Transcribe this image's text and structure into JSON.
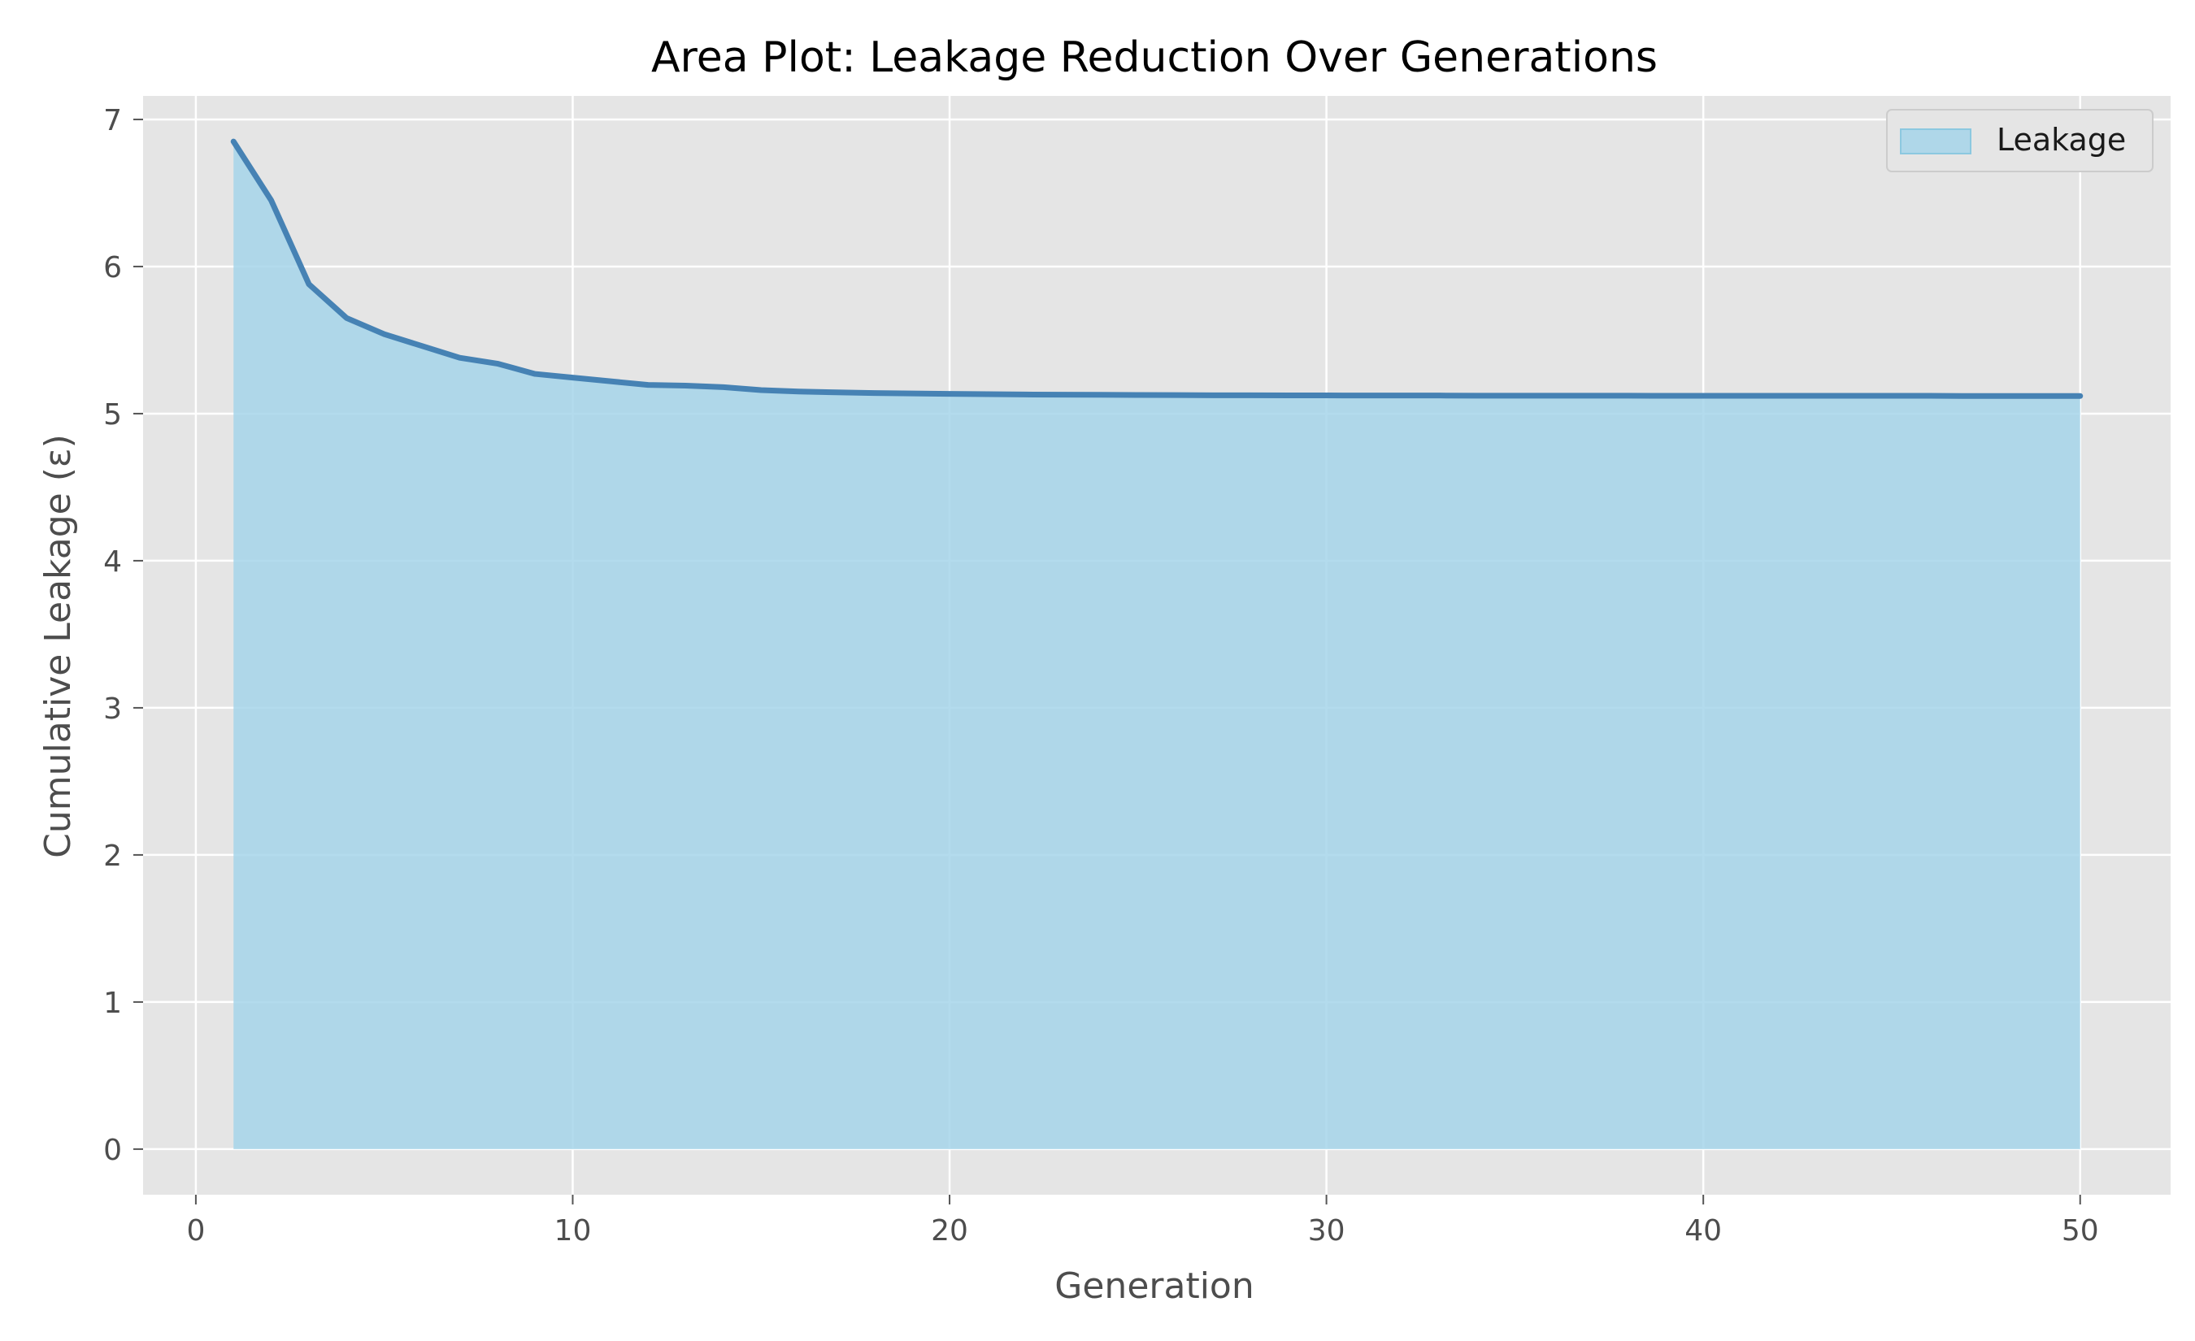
{
  "chart_data": {
    "type": "area",
    "title": "Area Plot: Leakage Reduction Over Generations",
    "xlabel": "Generation",
    "ylabel": "Cumulative Leakage (ε)",
    "xlim": [
      -1.4,
      52.4
    ],
    "ylim": [
      -0.31,
      7.16
    ],
    "xticks": [
      0,
      10,
      20,
      30,
      40,
      50
    ],
    "yticks": [
      0,
      1,
      2,
      3,
      4,
      5,
      6,
      7
    ],
    "grid": true,
    "legend_position": "top-right",
    "colors": {
      "fill": "#a6d5ea",
      "line": "#4682b4",
      "plot_bg": "#e5e5e5",
      "grid": "#ffffff"
    },
    "series": [
      {
        "name": "Leakage",
        "x": [
          1,
          2,
          3,
          4,
          5,
          6,
          7,
          8,
          9,
          10,
          11,
          12,
          13,
          14,
          15,
          16,
          17,
          18,
          19,
          20,
          21,
          22,
          23,
          24,
          25,
          26,
          27,
          28,
          29,
          30,
          31,
          32,
          33,
          34,
          35,
          36,
          37,
          38,
          39,
          40,
          41,
          42,
          43,
          44,
          45,
          46,
          47,
          48,
          49,
          50
        ],
        "values": [
          6.85,
          6.45,
          5.88,
          5.65,
          5.54,
          5.46,
          5.38,
          5.34,
          5.27,
          5.245,
          5.22,
          5.195,
          5.19,
          5.18,
          5.16,
          5.15,
          5.145,
          5.14,
          5.137,
          5.134,
          5.132,
          5.13,
          5.129,
          5.128,
          5.127,
          5.126,
          5.125,
          5.125,
          5.124,
          5.124,
          5.123,
          5.123,
          5.123,
          5.122,
          5.122,
          5.122,
          5.122,
          5.122,
          5.121,
          5.121,
          5.121,
          5.121,
          5.121,
          5.121,
          5.121,
          5.121,
          5.12,
          5.12,
          5.12,
          5.12
        ]
      }
    ]
  }
}
